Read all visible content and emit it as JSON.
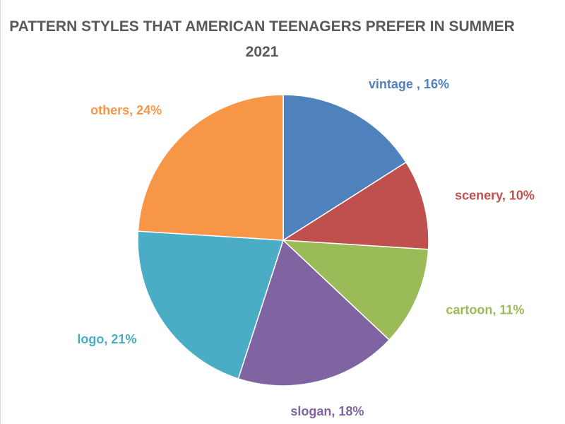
{
  "chart_data": {
    "type": "pie",
    "title": "PATTERN STYLES THAT AMERICAN TEENAGERS PREFER IN SUMMER 2021",
    "values": [
      16,
      10,
      11,
      18,
      21,
      24
    ],
    "value_labels": [
      "vintage , 16%",
      "scenery, 10%",
      "cartoon, 11%",
      "slogan, 18%",
      "logo, 21%",
      "others, 24%"
    ],
    "colors": [
      "#4f81bd",
      "#c0504d",
      "#9bbb59",
      "#8064a2",
      "#4bacc6",
      "#f79646"
    ]
  }
}
